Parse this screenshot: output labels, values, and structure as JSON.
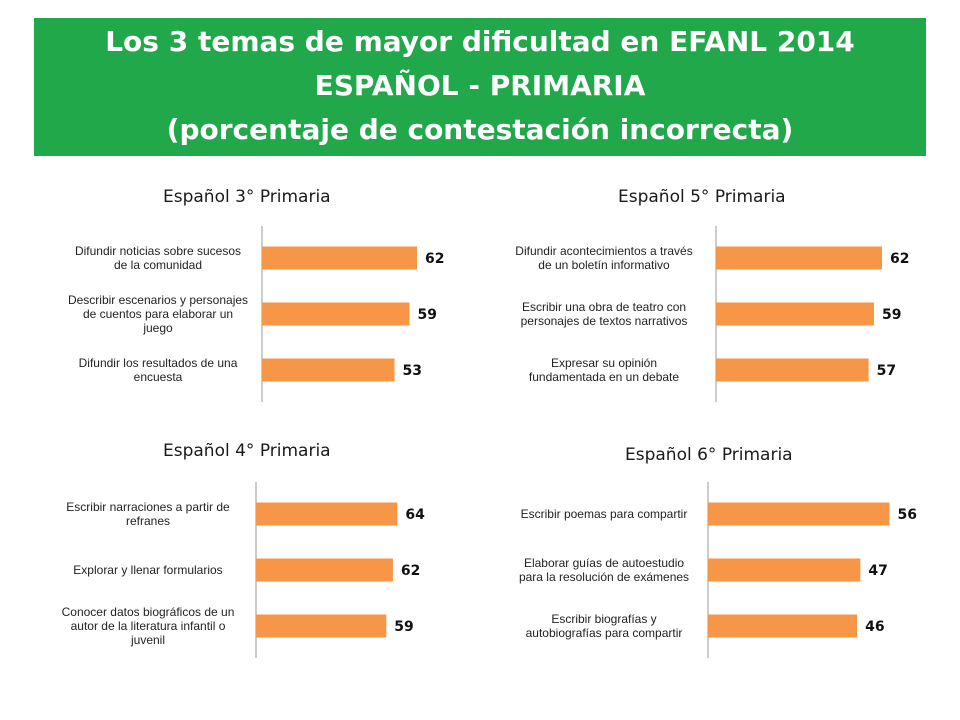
{
  "header": {
    "line1": "Los 3 temas de mayor dificultad en EFANL 2014",
    "line2": "ESPAÑOL - PRIMARIA",
    "line3": "(porcentaje de contestación incorrecta)"
  },
  "colors": {
    "header_bg": "#21a84a",
    "bar": "#f79646",
    "axis": "#999999"
  },
  "chart_data": [
    {
      "type": "bar",
      "orientation": "horizontal",
      "title": "Español 3° Primaria",
      "categories": [
        [
          "Difundir noticias sobre sucesos",
          "de la comunidad"
        ],
        [
          "Describir escenarios y personajes",
          "de cuentos para elaborar  un",
          "juego"
        ],
        [
          "Difundir los resultados de una",
          "encuesta"
        ]
      ],
      "values": [
        62,
        59,
        53
      ],
      "xlim": [
        0,
        70
      ]
    },
    {
      "type": "bar",
      "orientation": "horizontal",
      "title": "Español 5° Primaria",
      "categories": [
        [
          "Difundir acontecimientos a través",
          "de un boletín informativo"
        ],
        [
          "Escribir una obra de teatro con",
          "personajes de textos narrativos"
        ],
        [
          "Expresar su opinión",
          "fundamentada en un debate"
        ]
      ],
      "values": [
        62,
        59,
        57
      ],
      "xlim": [
        0,
        62
      ]
    },
    {
      "type": "bar",
      "orientation": "horizontal",
      "title": "Español 4° Primaria",
      "categories": [
        [
          "Escribir narraciones a partir de",
          "refranes"
        ],
        [
          "Explorar y llenar formularios"
        ],
        [
          "Conocer datos biográficos de un",
          "autor de la literatura infantil o",
          "juvenil"
        ]
      ],
      "values": [
        64,
        62,
        59
      ],
      "xlim": [
        0,
        72
      ]
    },
    {
      "type": "bar",
      "orientation": "horizontal",
      "title": "Español 6° Primaria",
      "categories": [
        [
          "Escribir poemas para compartir"
        ],
        [
          "Elaborar guías de autoestudio",
          "para la resolución de exámenes"
        ],
        [
          "Escribir biografías y",
          "autobiografías para  compartir"
        ]
      ],
      "values": [
        56,
        47,
        46
      ],
      "xlim": [
        0,
        58
      ]
    }
  ]
}
